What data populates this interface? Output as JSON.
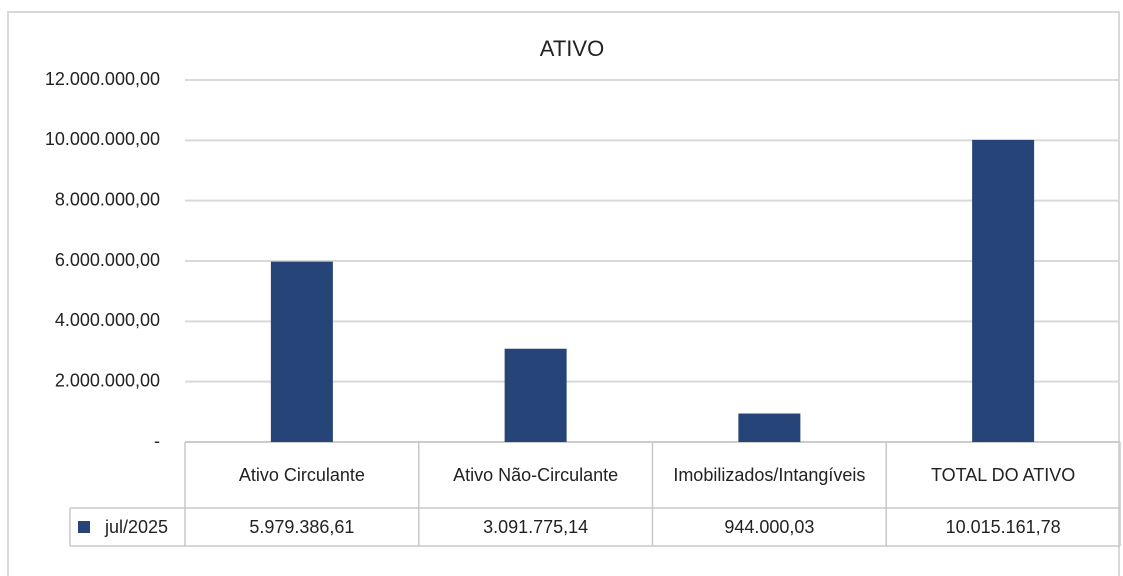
{
  "chart_data": {
    "type": "bar",
    "title": "ATIVO",
    "categories": [
      "Ativo Circulante",
      "Ativo Não-Circulante",
      "Imobilizados/Intangíveis",
      "TOTAL DO ATIVO"
    ],
    "series": [
      {
        "name": "jul/2025",
        "color": "#264478",
        "values": [
          5979386.61,
          3091775.14,
          944000.03,
          10015161.78
        ],
        "value_labels": [
          "5.979.386,61",
          "3.091.775,14",
          "944.000,03",
          "10.015.161,78"
        ]
      }
    ],
    "ylim": [
      0,
      12000000
    ],
    "yticks": [
      {
        "value": 0,
        "label": "-"
      },
      {
        "value": 2000000,
        "label": "2.000.000,00"
      },
      {
        "value": 4000000,
        "label": "4.000.000,00"
      },
      {
        "value": 6000000,
        "label": "6.000.000,00"
      },
      {
        "value": 8000000,
        "label": "8.000.000,00"
      },
      {
        "value": 10000000,
        "label": "10.000.000,00"
      },
      {
        "value": 12000000,
        "label": "12.000.000,00"
      }
    ],
    "grid": true,
    "data_table": true
  }
}
